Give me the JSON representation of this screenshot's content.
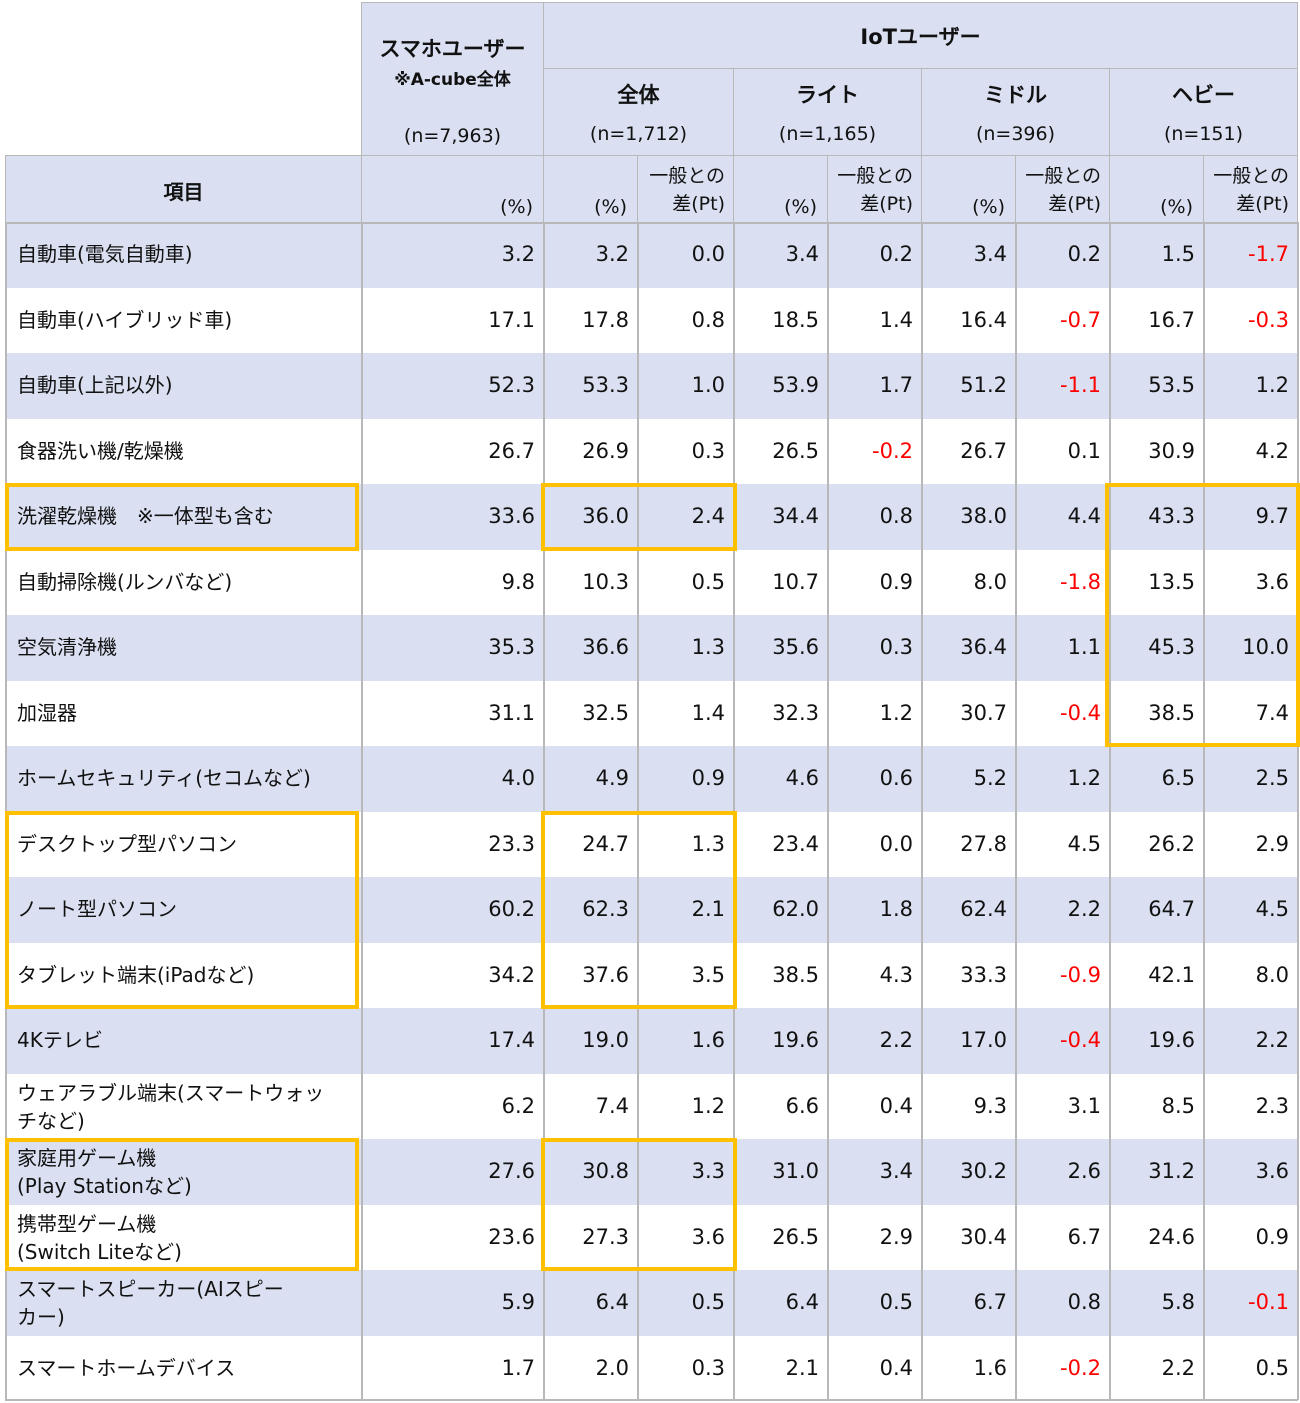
{
  "header": {
    "item_label": "項目",
    "smartphone": {
      "title": "スマホユーザー",
      "note": "※A-cube全体",
      "n": "(n=7,963)",
      "unit": "(%)"
    },
    "iot": {
      "title": "IoTユーザー",
      "groups": [
        {
          "label": "全体",
          "n": "(n=1,712)",
          "unit": "(%)",
          "diff_line1": "一般との",
          "diff_line2": "差(Pt)"
        },
        {
          "label": "ライト",
          "n": "(n=1,165)",
          "unit": "(%)",
          "diff_line1": "一般との",
          "diff_line2": "差(Pt)"
        },
        {
          "label": "ミドル",
          "n": "(n=396)",
          "unit": "(%)",
          "diff_line1": "一般との",
          "diff_line2": "差(Pt)"
        },
        {
          "label": "ヘビー",
          "n": "(n=151)",
          "unit": "(%)",
          "diff_line1": "一般との",
          "diff_line2": "差(Pt)"
        }
      ]
    }
  },
  "colors": {
    "header_bg": "#dae0f1",
    "stripe_bg": "#dae0f1",
    "negative": "#ff0000",
    "highlight_border": "#ffc000",
    "grid": "#b8b8b8"
  },
  "rows": [
    {
      "label": "自動車(電気自動車)",
      "label2": "",
      "values": [
        "3.2",
        "3.2",
        "0.0",
        "3.4",
        "0.2",
        "3.4",
        "0.2",
        "1.5",
        "-1.7"
      ]
    },
    {
      "label": "自動車(ハイブリッド車)",
      "label2": "",
      "values": [
        "17.1",
        "17.8",
        "0.8",
        "18.5",
        "1.4",
        "16.4",
        "-0.7",
        "16.7",
        "-0.3"
      ]
    },
    {
      "label": "自動車(上記以外)",
      "label2": "",
      "values": [
        "52.3",
        "53.3",
        "1.0",
        "53.9",
        "1.7",
        "51.2",
        "-1.1",
        "53.5",
        "1.2"
      ]
    },
    {
      "label": "食器洗い機/乾燥機",
      "label2": "",
      "values": [
        "26.7",
        "26.9",
        "0.3",
        "26.5",
        "-0.2",
        "26.7",
        "0.1",
        "30.9",
        "4.2"
      ]
    },
    {
      "label": "洗濯乾燥機　※一体型も含む",
      "label2": "",
      "values": [
        "33.6",
        "36.0",
        "2.4",
        "34.4",
        "0.8",
        "38.0",
        "4.4",
        "43.3",
        "9.7"
      ]
    },
    {
      "label": "自動掃除機(ルンバなど)",
      "label2": "",
      "values": [
        "9.8",
        "10.3",
        "0.5",
        "10.7",
        "0.9",
        "8.0",
        "-1.8",
        "13.5",
        "3.6"
      ]
    },
    {
      "label": "空気清浄機",
      "label2": "",
      "values": [
        "35.3",
        "36.6",
        "1.3",
        "35.6",
        "0.3",
        "36.4",
        "1.1",
        "45.3",
        "10.0"
      ]
    },
    {
      "label": "加湿器",
      "label2": "",
      "values": [
        "31.1",
        "32.5",
        "1.4",
        "32.3",
        "1.2",
        "30.7",
        "-0.4",
        "38.5",
        "7.4"
      ]
    },
    {
      "label": "ホームセキュリティ(セコムなど)",
      "label2": "",
      "values": [
        "4.0",
        "4.9",
        "0.9",
        "4.6",
        "0.6",
        "5.2",
        "1.2",
        "6.5",
        "2.5"
      ]
    },
    {
      "label": "デスクトップ型パソコン",
      "label2": "",
      "values": [
        "23.3",
        "24.7",
        "1.3",
        "23.4",
        "0.0",
        "27.8",
        "4.5",
        "26.2",
        "2.9"
      ]
    },
    {
      "label": "ノート型パソコン",
      "label2": "",
      "values": [
        "60.2",
        "62.3",
        "2.1",
        "62.0",
        "1.8",
        "62.4",
        "2.2",
        "64.7",
        "4.5"
      ]
    },
    {
      "label": "タブレット端末(iPadなど)",
      "label2": "",
      "values": [
        "34.2",
        "37.6",
        "3.5",
        "38.5",
        "4.3",
        "33.3",
        "-0.9",
        "42.1",
        "8.0"
      ]
    },
    {
      "label": "4Kテレビ",
      "label2": "",
      "values": [
        "17.4",
        "19.0",
        "1.6",
        "19.6",
        "2.2",
        "17.0",
        "-0.4",
        "19.6",
        "2.2"
      ]
    },
    {
      "label": "ウェアラブル端末(スマートウォッ",
      "label2": "チなど)",
      "values": [
        "6.2",
        "7.4",
        "1.2",
        "6.6",
        "0.4",
        "9.3",
        "3.1",
        "8.5",
        "2.3"
      ]
    },
    {
      "label": "家庭用ゲーム機",
      "label2": "(Play Stationなど)",
      "values": [
        "27.6",
        "30.8",
        "3.3",
        "31.0",
        "3.4",
        "30.2",
        "2.6",
        "31.2",
        "3.6"
      ]
    },
    {
      "label": "携帯型ゲーム機",
      "label2": "(Switch Liteなど)",
      "values": [
        "23.6",
        "27.3",
        "3.6",
        "26.5",
        "2.9",
        "30.4",
        "6.7",
        "24.6",
        "0.9"
      ]
    },
    {
      "label": "スマートスピーカー(AIスピー",
      "label2": "カー)",
      "values": [
        "5.9",
        "6.4",
        "0.5",
        "6.4",
        "0.5",
        "6.7",
        "0.8",
        "5.8",
        "-0.1"
      ]
    },
    {
      "label": "スマートホームデバイス",
      "label2": "",
      "values": [
        "1.7",
        "2.0",
        "0.3",
        "2.1",
        "0.4",
        "1.6",
        "-0.2",
        "2.2",
        "0.5"
      ]
    }
  ],
  "highlights": [
    {
      "name": "highlight-washer-item",
      "rows": [
        4,
        4
      ],
      "cols": "item"
    },
    {
      "name": "highlight-washer-overall",
      "rows": [
        4,
        4
      ],
      "cols": "overall"
    },
    {
      "name": "highlight-heavy-appliances",
      "rows": [
        4,
        7
      ],
      "cols": "heavy"
    },
    {
      "name": "highlight-pc-item",
      "rows": [
        9,
        11
      ],
      "cols": "item"
    },
    {
      "name": "highlight-pc-overall",
      "rows": [
        9,
        11
      ],
      "cols": "overall"
    },
    {
      "name": "highlight-game-item",
      "rows": [
        14,
        15
      ],
      "cols": "item"
    },
    {
      "name": "highlight-game-overall",
      "rows": [
        14,
        15
      ],
      "cols": "overall"
    }
  ]
}
